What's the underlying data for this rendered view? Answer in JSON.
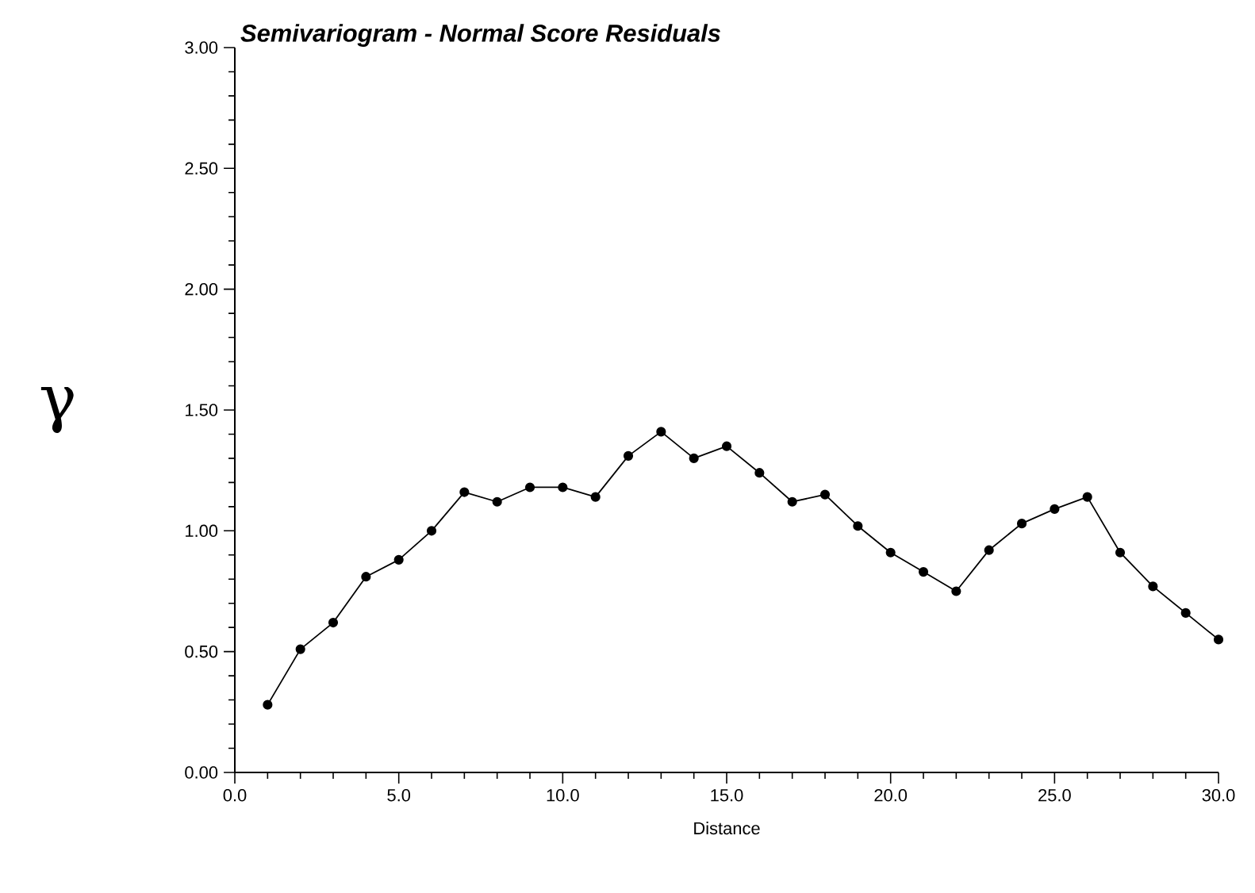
{
  "chart_data": {
    "type": "line",
    "title": "Semivariogram - Normal Score Residuals",
    "xlabel": "Distance",
    "ylabel": "γ",
    "x": [
      1,
      2,
      3,
      4,
      5,
      6,
      7,
      8,
      9,
      10,
      11,
      12,
      13,
      14,
      15,
      16,
      17,
      18,
      19,
      20,
      21,
      22,
      23,
      24,
      25,
      26,
      27,
      28,
      29,
      30
    ],
    "series": [
      {
        "color": "#000000",
        "values": [
          0.28,
          0.51,
          0.62,
          0.81,
          0.88,
          1.0,
          1.16,
          1.12,
          1.18,
          1.18,
          1.14,
          1.31,
          1.41,
          1.3,
          1.35,
          1.24,
          1.12,
          1.15,
          1.02,
          0.91,
          0.83,
          0.75,
          0.92,
          1.03,
          1.09,
          1.14,
          0.91,
          0.77,
          0.66,
          0.55
        ]
      }
    ],
    "xlim": [
      0,
      30
    ],
    "ylim": [
      0,
      3
    ],
    "xticks": [
      {
        "value": 0,
        "label": "0.0"
      },
      {
        "value": 5,
        "label": "5.0"
      },
      {
        "value": 10,
        "label": "10.0"
      },
      {
        "value": 15,
        "label": "15.0"
      },
      {
        "value": 20,
        "label": "20.0"
      },
      {
        "value": 25,
        "label": "25.0"
      },
      {
        "value": 30,
        "label": "30.0"
      }
    ],
    "yticks": [
      {
        "value": 0,
        "label": "0.00"
      },
      {
        "value": 0.5,
        "label": "0.50"
      },
      {
        "value": 1,
        "label": "1.00"
      },
      {
        "value": 1.5,
        "label": "1.50"
      },
      {
        "value": 2,
        "label": "2.00"
      },
      {
        "value": 2.5,
        "label": "2.50"
      },
      {
        "value": 3,
        "label": "3.00"
      }
    ],
    "marker": "circle",
    "line_style": "solid",
    "grid": false
  }
}
